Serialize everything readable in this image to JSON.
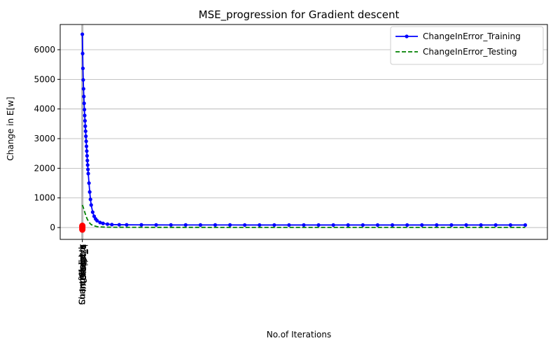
{
  "chart_data": {
    "type": "line",
    "title": "MSE_progression for Gradient descent",
    "xlabel": "No.of Iterations",
    "ylabel": "Change in E[w]",
    "xlim": [
      -150,
      3150
    ],
    "ylim": [
      -400,
      6850
    ],
    "yticks": [
      0,
      1000,
      2000,
      3000,
      4000,
      5000,
      6000
    ],
    "ytick_labels": [
      "0",
      "1000",
      "2000",
      "3000",
      "4000",
      "5000",
      "6000"
    ],
    "grid": "horizontal",
    "legend": "top-right",
    "series": [
      {
        "name": "ChangeInError_Training",
        "color": "#0000ff",
        "style": "solid-with-dots",
        "x": [
          0,
          2,
          4,
          6,
          8,
          10,
          12,
          14,
          16,
          18,
          20,
          22,
          24,
          26,
          28,
          30,
          32,
          34,
          36,
          38,
          40,
          45,
          50,
          55,
          60,
          70,
          80,
          90,
          100,
          120,
          140,
          170,
          200,
          250,
          300,
          400,
          500,
          600,
          700,
          800,
          900,
          1000,
          1100,
          1200,
          1300,
          1400,
          1500,
          1600,
          1700,
          1800,
          1900,
          2000,
          2100,
          2200,
          2300,
          2400,
          2500,
          2600,
          2700,
          2800,
          2900,
          3000
        ],
        "y": [
          6520,
          5870,
          5370,
          4980,
          4680,
          4420,
          4190,
          3980,
          3780,
          3600,
          3420,
          3250,
          3080,
          2910,
          2740,
          2580,
          2420,
          2260,
          2110,
          1960,
          1820,
          1500,
          1200,
          950,
          760,
          520,
          380,
          290,
          230,
          170,
          140,
          115,
          100,
          95,
          92,
          90,
          89,
          88,
          88,
          87,
          87,
          87,
          86,
          86,
          86,
          86,
          86,
          86,
          85,
          85,
          85,
          85,
          85,
          85,
          85,
          85,
          85,
          85,
          85,
          85,
          85,
          85
        ]
      },
      {
        "name": "ChangeInError_Testing",
        "color": "#008000",
        "style": "dashed",
        "x": [
          0,
          5,
          10,
          15,
          20,
          25,
          30,
          40,
          50,
          60,
          80,
          100,
          150,
          200,
          300,
          500,
          1000,
          1500,
          2000,
          2500,
          3000
        ],
        "y": [
          760,
          700,
          620,
          540,
          460,
          390,
          320,
          220,
          150,
          100,
          55,
          30,
          15,
          10,
          8,
          6,
          5,
          5,
          5,
          5,
          5
        ]
      }
    ],
    "markers": {
      "color": "#ff0000",
      "x": [
        0,
        0,
        0,
        0,
        0
      ],
      "y": [
        -40,
        10,
        60,
        -70,
        30
      ]
    },
    "vertical_line": {
      "x": 0,
      "color": "#a0a0a0"
    },
    "overlapping_x_tick_labels": [
      "SumofWeights",
      "Slope_q",
      "Intercept_q",
      "Slope_k",
      "Intercept_k",
      "Stepsize",
      "ChangeInError"
    ]
  }
}
